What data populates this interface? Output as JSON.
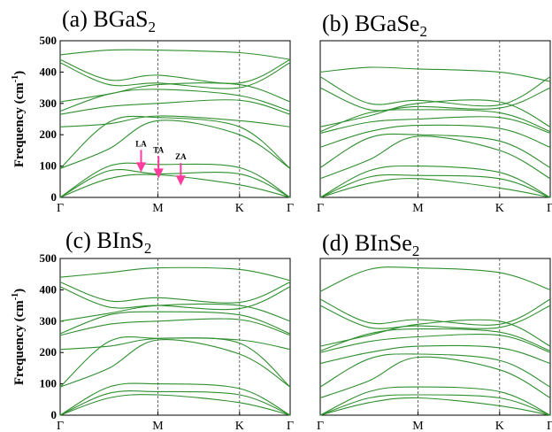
{
  "chart_data": [
    {
      "type": "line",
      "title": "(a) BGaS",
      "title_sub": "2",
      "ylabel": "Frequency (cm",
      "ylabel_sup": "-1",
      "ylabel_end": ")",
      "ylim": [
        0,
        500
      ],
      "yticks": [
        0,
        100,
        200,
        300,
        400,
        500
      ],
      "x_labels": [
        "Γ",
        "M",
        "K",
        "Γ"
      ],
      "annotations": [
        {
          "text": "LA",
          "x": 0.51,
          "y": 112
        },
        {
          "text": "TA",
          "x": 0.62,
          "y": 92
        },
        {
          "text": "ZA",
          "x": 0.76,
          "y": 70
        }
      ],
      "bands": [
        [
          0,
          60,
          72,
          40,
          0
        ],
        [
          0,
          85,
          75,
          75,
          0
        ],
        [
          0,
          100,
          105,
          95,
          0
        ],
        [
          92,
          155,
          245,
          200,
          92
        ],
        [
          92,
          240,
          255,
          225,
          92
        ],
        [
          225,
          235,
          260,
          245,
          225
        ],
        [
          265,
          290,
          300,
          310,
          265
        ],
        [
          275,
          330,
          345,
          325,
          275
        ],
        [
          305,
          330,
          360,
          360,
          305
        ],
        [
          430,
          360,
          365,
          350,
          430
        ],
        [
          440,
          375,
          390,
          365,
          440
        ],
        [
          455,
          470,
          470,
          462,
          440
        ]
      ]
    },
    {
      "type": "line",
      "title": "(b) BGaSe",
      "title_sub": "2",
      "ylim": [
        0,
        500
      ],
      "x_labels": [
        "Γ",
        "M",
        "K",
        "Γ"
      ],
      "bands": [
        [
          0,
          45,
          60,
          30,
          0
        ],
        [
          0,
          65,
          70,
          60,
          0
        ],
        [
          0,
          85,
          100,
          80,
          0
        ],
        [
          60,
          120,
          195,
          150,
          60
        ],
        [
          95,
          190,
          200,
          180,
          95
        ],
        [
          160,
          210,
          230,
          220,
          160
        ],
        [
          205,
          240,
          250,
          255,
          205
        ],
        [
          210,
          270,
          280,
          270,
          210
        ],
        [
          225,
          260,
          300,
          305,
          225
        ],
        [
          350,
          280,
          290,
          285,
          350
        ],
        [
          385,
          300,
          310,
          295,
          385
        ],
        [
          400,
          415,
          410,
          400,
          370
        ]
      ]
    },
    {
      "type": "line",
      "title": "(c) BInS",
      "title_sub": "2",
      "ylabel": "Frequency (cm",
      "ylabel_sup": "-1",
      "ylabel_end": ")",
      "ylim": [
        0,
        500
      ],
      "yticks": [
        0,
        100,
        200,
        300,
        400,
        500
      ],
      "x_labels": [
        "Γ",
        "M",
        "K",
        "Γ"
      ],
      "bands": [
        [
          0,
          55,
          65,
          40,
          0
        ],
        [
          0,
          70,
          75,
          65,
          0
        ],
        [
          0,
          90,
          100,
          85,
          0
        ],
        [
          90,
          150,
          240,
          195,
          90
        ],
        [
          90,
          235,
          245,
          230,
          90
        ],
        [
          210,
          220,
          245,
          240,
          210
        ],
        [
          255,
          290,
          300,
          305,
          255
        ],
        [
          260,
          320,
          330,
          320,
          260
        ],
        [
          300,
          325,
          350,
          350,
          300
        ],
        [
          410,
          345,
          350,
          340,
          410
        ],
        [
          425,
          365,
          375,
          360,
          425
        ],
        [
          440,
          455,
          470,
          465,
          430
        ]
      ]
    },
    {
      "type": "line",
      "title": "(d) BInSe",
      "title_sub": "2",
      "ylim": [
        0,
        500
      ],
      "x_labels": [
        "Γ",
        "M",
        "K",
        "Γ"
      ],
      "bands": [
        [
          0,
          40,
          55,
          30,
          0
        ],
        [
          0,
          55,
          65,
          55,
          0
        ],
        [
          0,
          75,
          90,
          75,
          0
        ],
        [
          55,
          110,
          185,
          145,
          55
        ],
        [
          90,
          180,
          195,
          175,
          90
        ],
        [
          165,
          200,
          220,
          215,
          165
        ],
        [
          200,
          235,
          250,
          255,
          200
        ],
        [
          205,
          260,
          275,
          265,
          205
        ],
        [
          220,
          255,
          290,
          300,
          220
        ],
        [
          350,
          280,
          285,
          280,
          350
        ],
        [
          370,
          295,
          305,
          290,
          370
        ],
        [
          395,
          465,
          470,
          455,
          400
        ]
      ]
    }
  ]
}
